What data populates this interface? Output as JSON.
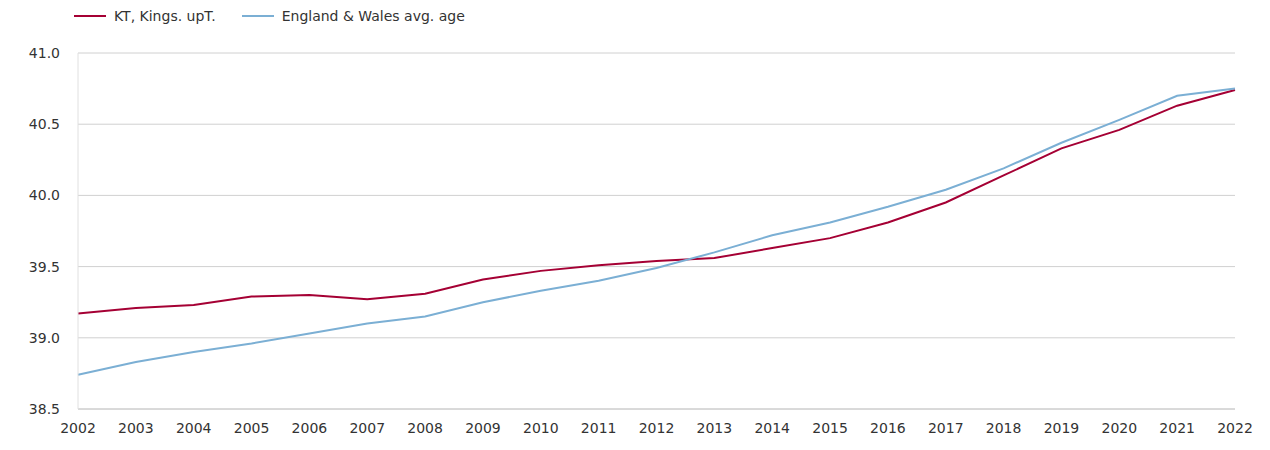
{
  "chart_data": {
    "type": "line",
    "categories": [
      "2002",
      "2003",
      "2004",
      "2005",
      "2006",
      "2007",
      "2008",
      "2009",
      "2010",
      "2011",
      "2012",
      "2013",
      "2014",
      "2015",
      "2016",
      "2017",
      "2018",
      "2019",
      "2020",
      "2021",
      "2022"
    ],
    "series": [
      {
        "name": "KT, Kings. upT.",
        "color": "#a50034",
        "values": [
          39.17,
          39.21,
          39.23,
          39.29,
          39.3,
          39.27,
          39.31,
          39.41,
          39.47,
          39.51,
          39.54,
          39.56,
          39.63,
          39.7,
          39.81,
          39.95,
          40.14,
          40.33,
          40.46,
          40.63,
          40.74
        ]
      },
      {
        "name": "England & Wales avg. age",
        "color": "#7bafd4",
        "values": [
          38.74,
          38.83,
          38.9,
          38.96,
          39.03,
          39.1,
          39.15,
          39.25,
          39.33,
          39.4,
          39.49,
          39.6,
          39.72,
          39.81,
          39.92,
          40.04,
          40.19,
          40.37,
          40.53,
          40.7,
          40.75
        ]
      }
    ],
    "ylim": [
      38.5,
      41
    ],
    "yticks": [
      38.5,
      {
        "value": 39,
        "label": "39.0"
      },
      39.5,
      {
        "value": 40,
        "label": "40.0"
      },
      40.5,
      {
        "value": 41,
        "label": "41.0"
      }
    ],
    "grid": true,
    "legend": "top left"
  }
}
